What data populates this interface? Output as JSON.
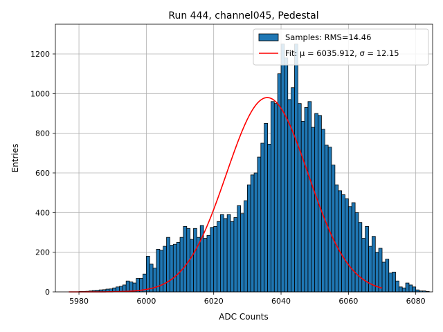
{
  "chart_data": {
    "type": "bar",
    "title": "Run 444, channel045, Pedestal",
    "xlabel": "ADC Counts",
    "ylabel": "Entries",
    "xlim": [
      5973,
      6085
    ],
    "ylim": [
      0,
      1350
    ],
    "xticks": [
      5980,
      6000,
      6020,
      6040,
      6060,
      6080
    ],
    "yticks": [
      0,
      200,
      400,
      600,
      800,
      1000,
      1200
    ],
    "grid": true,
    "legend_position": "top-right",
    "histogram": {
      "name": "Samples: RMS=14.46",
      "bin_start": 5977,
      "bin_width": 1,
      "color": "#1f77b4",
      "edgecolor": "#000000",
      "counts": [
        0,
        0,
        0,
        2,
        2,
        3,
        5,
        7,
        8,
        10,
        11,
        14,
        15,
        20,
        25,
        28,
        35,
        55,
        50,
        45,
        68,
        68,
        90,
        180,
        140,
        120,
        215,
        210,
        230,
        275,
        235,
        240,
        250,
        275,
        330,
        320,
        265,
        320,
        275,
        335,
        270,
        285,
        325,
        330,
        355,
        390,
        370,
        390,
        355,
        375,
        435,
        395,
        460,
        540,
        590,
        600,
        680,
        750,
        850,
        745,
        960,
        950,
        1100,
        1250,
        1180,
        970,
        1030,
        1250,
        950,
        860,
        930,
        960,
        830,
        900,
        890,
        820,
        740,
        730,
        640,
        540,
        510,
        490,
        470,
        430,
        450,
        400,
        350,
        270,
        330,
        230,
        280,
        200,
        220,
        150,
        165,
        95,
        100,
        55,
        25,
        20,
        45,
        35,
        25,
        10,
        5,
        5,
        2,
        0,
        0,
        0,
        0,
        0,
        0,
        0
      ]
    },
    "series": [
      {
        "name": "Fit: μ = 6035.912, σ = 12.15",
        "type": "line",
        "color": "#ff0000",
        "mu": 6035.912,
        "sigma": 12.15,
        "amplitude": 980,
        "x_range": [
          5977,
          6070
        ]
      }
    ]
  }
}
